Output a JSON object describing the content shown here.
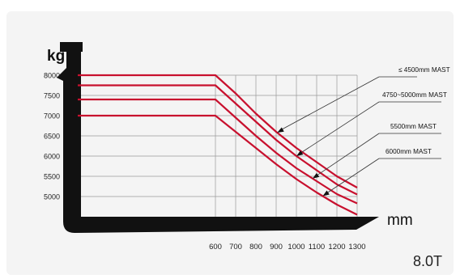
{
  "chart_data": {
    "type": "line",
    "title": "",
    "ylabel": "kg",
    "xlabel": "mm",
    "model": "8.0T",
    "xlim": [
      0,
      1300
    ],
    "ylim": [
      4500,
      8000
    ],
    "x_ticks": [
      600,
      700,
      800,
      900,
      1000,
      1100,
      1200,
      1300
    ],
    "y_ticks": [
      8000,
      7500,
      7000,
      6500,
      6000,
      5500,
      5000
    ],
    "grid": true,
    "legend": "annotation labels at right",
    "line_color": "#c8102e",
    "series": [
      {
        "name": "≤ 4500mm MAST",
        "x": [
          0,
          600,
          700,
          800,
          900,
          1000,
          1100,
          1200,
          1300
        ],
        "y": [
          8000,
          8000,
          7550,
          7050,
          6600,
          6200,
          5850,
          5500,
          5220
        ]
      },
      {
        "name": "4750~5000mm MAST",
        "x": [
          0,
          600,
          700,
          800,
          900,
          1000,
          1100,
          1200,
          1300
        ],
        "y": [
          7750,
          7750,
          7300,
          6850,
          6400,
          6000,
          5650,
          5300,
          5050
        ]
      },
      {
        "name": "5500mm MAST",
        "x": [
          0,
          600,
          700,
          800,
          900,
          1000,
          1100,
          1200,
          1300
        ],
        "y": [
          7400,
          7400,
          6950,
          6500,
          6080,
          5700,
          5380,
          5060,
          4830
        ]
      },
      {
        "name": "6000mm MAST",
        "x": [
          0,
          600,
          700,
          800,
          900,
          1000,
          1100,
          1200,
          1300
        ],
        "y": [
          7000,
          7000,
          6600,
          6200,
          5800,
          5430,
          5100,
          4800,
          4550
        ]
      }
    ]
  }
}
